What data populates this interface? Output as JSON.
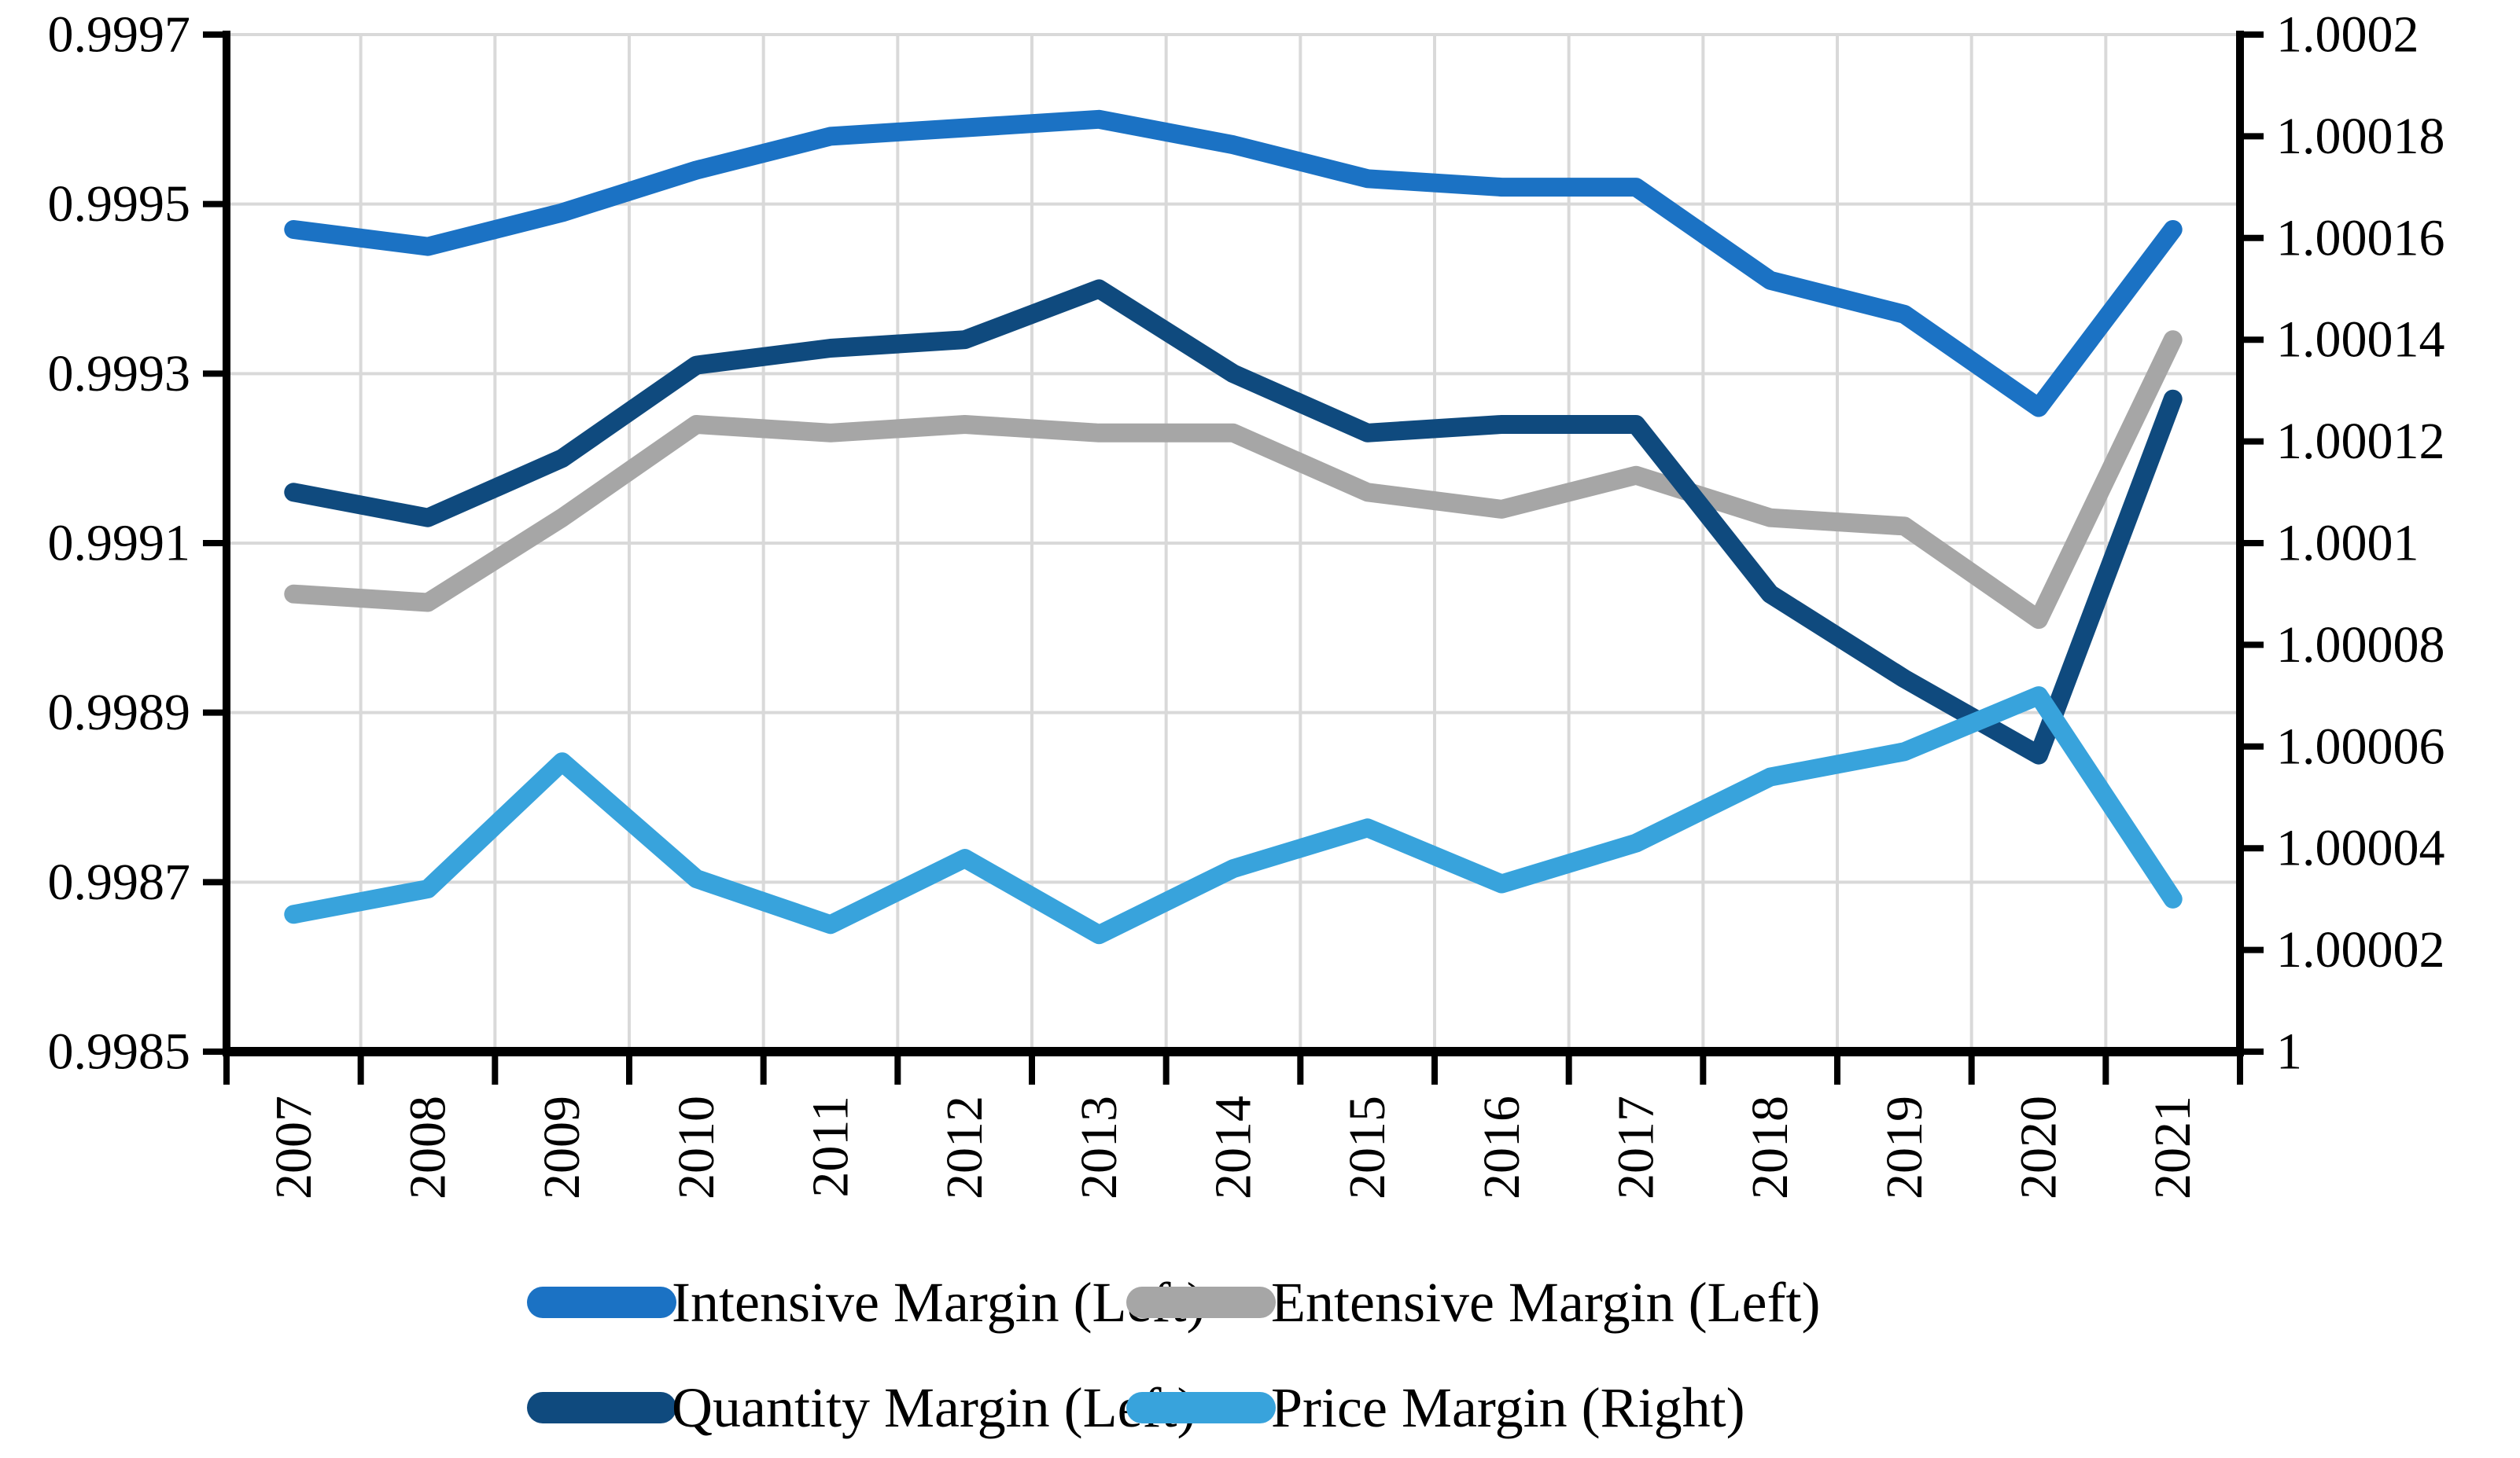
{
  "chart_data": {
    "type": "line",
    "title": "",
    "xlabel": "",
    "ylabel_left": "",
    "ylabel_right": "",
    "grid": true,
    "legend_position": "bottom",
    "categories": [
      "2007",
      "2008",
      "2009",
      "2010",
      "2011",
      "2012",
      "2013",
      "2014",
      "2015",
      "2016",
      "2017",
      "2018",
      "2019",
      "2020",
      "2021"
    ],
    "axes": {
      "left": {
        "min": 0.9985,
        "max": 0.9997,
        "tick_step": 0.0002,
        "tick_labels": [
          "0.9985",
          "0.9987",
          "0.9989",
          "0.9991",
          "0.9993",
          "0.9995",
          "0.9997"
        ]
      },
      "right": {
        "min": 1.0,
        "max": 1.0002,
        "tick_step": 2e-05,
        "tick_labels": [
          "1",
          "1.00002",
          "1.00004",
          "1.00006",
          "1.00008",
          "1.0001",
          "1.00012",
          "1.00014",
          "1.00016",
          "1.00018",
          "1.0002"
        ]
      }
    },
    "series": [
      {
        "name": "Intensive Margin (Left)",
        "axis": "left",
        "color": "#1B72C4",
        "values": [
          0.99947,
          0.99945,
          0.99949,
          0.99954,
          0.99958,
          0.99959,
          0.9996,
          0.99957,
          0.99953,
          0.99952,
          0.99952,
          0.99941,
          0.99937,
          0.99926,
          0.99947
        ]
      },
      {
        "name": "Entensive Margin (Left)",
        "axis": "left",
        "color": "#A6A6A6",
        "values": [
          0.99904,
          0.99903,
          0.99913,
          0.99924,
          0.99923,
          0.99924,
          0.99923,
          0.99923,
          0.99916,
          0.99914,
          0.99918,
          0.99913,
          0.99912,
          0.99901,
          0.99934
        ]
      },
      {
        "name": "Quantity Margin (Left)",
        "axis": "left",
        "color": "#0F4A7E",
        "values": [
          0.99916,
          0.99913,
          0.9992,
          0.99931,
          0.99933,
          0.99934,
          0.9994,
          0.9993,
          0.99923,
          0.99924,
          0.99924,
          0.99904,
          0.99894,
          0.99885,
          0.99927
        ]
      },
      {
        "name": "Price Margin (Right)",
        "axis": "right",
        "color": "#38A3DC",
        "values": [
          1.000027,
          1.000032,
          1.000057,
          1.000034,
          1.000025,
          1.000038,
          1.000023,
          1.000036,
          1.000044,
          1.000033,
          1.000041,
          1.000054,
          1.000059,
          1.00007,
          1.00003
        ]
      }
    ],
    "legend_rows": [
      [
        0,
        1
      ],
      [
        2,
        3
      ]
    ]
  },
  "colors": {
    "background": "#FFFFFF",
    "gridline": "#D9D9D9",
    "axis": "#000000",
    "text": "#000000"
  }
}
